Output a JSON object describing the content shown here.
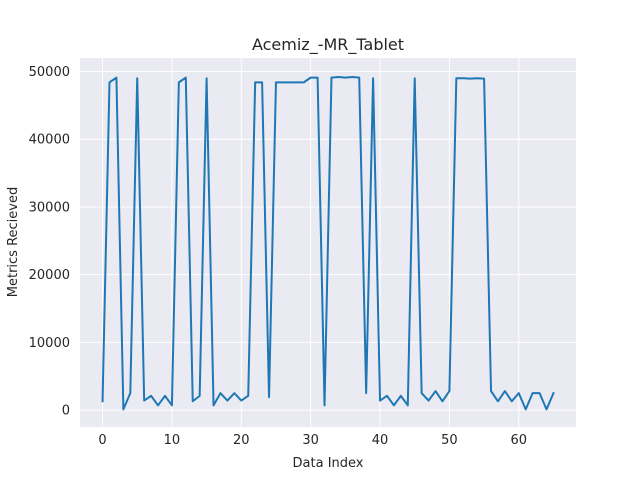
{
  "chart_data": {
    "type": "line",
    "title": "Acemiz_-MR_Tablet",
    "xlabel": "Data Index",
    "ylabel": "Metrics Recieved",
    "xlim": [
      -3.25,
      68.25
    ],
    "ylim": [
      -2500,
      52000
    ],
    "xticks": [
      0,
      10,
      20,
      30,
      40,
      50,
      60
    ],
    "yticks": [
      0,
      10000,
      20000,
      30000,
      40000,
      50000
    ],
    "grid": true,
    "legend": "none",
    "colors": {
      "background": "#eaeaf2",
      "grid": "#ffffff",
      "line": "#1f77b4",
      "text": "#262626"
    },
    "series": [
      {
        "x": [
          0,
          1,
          2,
          3,
          4,
          5,
          6,
          7,
          8,
          9,
          10,
          11,
          12,
          13,
          14,
          15,
          16,
          17,
          18,
          19,
          20,
          21,
          22,
          23,
          24,
          25,
          26,
          27,
          28,
          29,
          30,
          31,
          32,
          33,
          34,
          35,
          36,
          37,
          38,
          39,
          40,
          41,
          42,
          43,
          44,
          45,
          46,
          47,
          48,
          49,
          50,
          51,
          52,
          53,
          54,
          55,
          56,
          57,
          58,
          59,
          60,
          61,
          62,
          63,
          64,
          65
        ],
        "values": [
          1300,
          48400,
          49100,
          100,
          2500,
          49000,
          1400,
          2100,
          700,
          2100,
          700,
          48400,
          49100,
          1300,
          2100,
          49000,
          700,
          2500,
          1400,
          2500,
          1400,
          2100,
          48400,
          48400,
          1900,
          48400,
          48400,
          48400,
          48400,
          48400,
          49100,
          49100,
          700,
          49100,
          49200,
          49100,
          49200,
          49100,
          2500,
          49000,
          1400,
          2100,
          700,
          2100,
          700,
          49000,
          2500,
          1400,
          2800,
          1300,
          2800,
          49000,
          49000,
          48950,
          49000,
          48950,
          2800,
          1300,
          2800,
          1300,
          2500,
          100,
          2500,
          2500,
          100,
          2500
        ]
      }
    ]
  }
}
